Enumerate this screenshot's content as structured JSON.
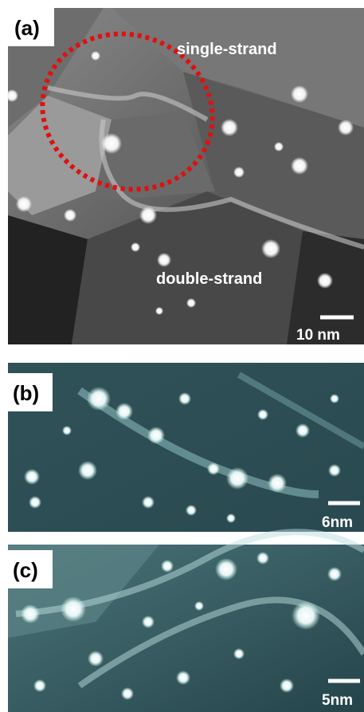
{
  "panels": [
    {
      "label": "(a)",
      "annotations": [
        "single-strand",
        "double-strand"
      ],
      "scale_bar": "10 nm"
    },
    {
      "label": "(b)",
      "scale_bar": "6nm"
    },
    {
      "label": "(c)",
      "scale_bar": "5nm"
    }
  ]
}
